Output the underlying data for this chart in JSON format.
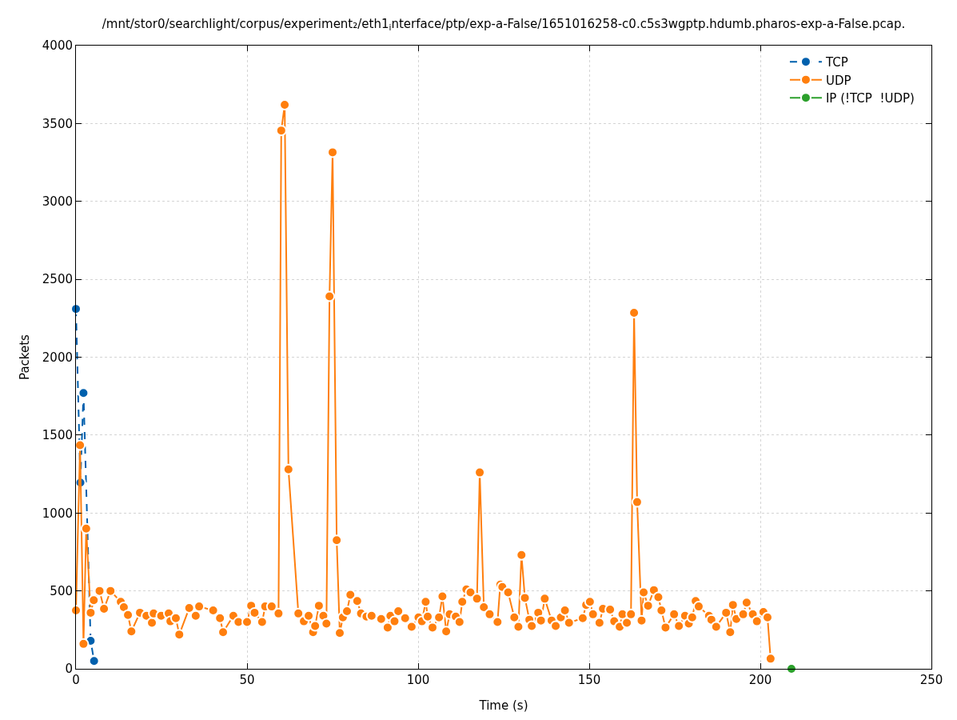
{
  "chart_data": {
    "type": "line",
    "title": "/mnt/stor0/searchlight/corpus/experiment₂/eth1$_{i}$nterface/ptp/exp-a-False/1651016258-c0.c5s3wgptp.hdumb.pharos-exp-a-False.pcap.",
    "xlabel": "Time (s)",
    "ylabel": "Packets",
    "xlim": [
      0,
      250
    ],
    "xticks": [
      0,
      50,
      100,
      150,
      200,
      250
    ],
    "ylim": [
      0,
      4000
    ],
    "yticks": [
      0,
      500,
      1000,
      1500,
      2000,
      2500,
      3000,
      3500,
      4000
    ],
    "grid": true,
    "legend": "top right",
    "marker": "circle",
    "series": [
      {
        "name": "TCP",
        "color": "#0060ad",
        "line_style": "dashed",
        "x": [
          0.0,
          1.3,
          2.2,
          4.3,
          5.3
        ],
        "values": [
          2310,
          1195,
          1770,
          180,
          50
        ]
      },
      {
        "name": "UDP",
        "color": "#ff7f0e",
        "line_style": "solid",
        "x": [
          0.0,
          1.2,
          2.2,
          3.0,
          4.3,
          5.2,
          6.9,
          8.2,
          10.1,
          13.1,
          14.0,
          15.2,
          16.2,
          18.7,
          20.6,
          22.2,
          22.7,
          24.9,
          27.1,
          27.6,
          29.2,
          30.2,
          33.1,
          35.0,
          36.0,
          40.1,
          42.1,
          43.0,
          46.0,
          47.5,
          50.0,
          51.2,
          52.2,
          54.4,
          55.3,
          57.2,
          59.2,
          60.0,
          61.0,
          62.1,
          65.0,
          66.6,
          68.0,
          69.3,
          69.9,
          71.0,
          72.3,
          73.2,
          74.1,
          75.0,
          76.2,
          77.1,
          78.0,
          79.2,
          80.2,
          82.2,
          83.3,
          84.9,
          86.4,
          89.2,
          91.1,
          91.9,
          93.1,
          94.2,
          96.2,
          98.1,
          100.1,
          101.1,
          102.2,
          102.8,
          104.2,
          106.1,
          107.1,
          108.2,
          109.2,
          111.0,
          112.1,
          112.9,
          114.1,
          115.3,
          117.2,
          118.0,
          119.2,
          120.9,
          123.2,
          124.0,
          124.6,
          126.3,
          128.1,
          129.3,
          130.2,
          131.2,
          132.5,
          133.2,
          135.1,
          135.9,
          137.0,
          139.0,
          140.2,
          141.7,
          142.9,
          144.1,
          148.1,
          149.1,
          150.2,
          151.1,
          153.0,
          154.0,
          156.1,
          157.3,
          158.9,
          159.7,
          161.0,
          162.2,
          163.1,
          164.0,
          165.3,
          165.9,
          167.2,
          168.9,
          170.2,
          171.1,
          172.3,
          174.8,
          176.2,
          178.0,
          179.1,
          180.1,
          181.1,
          182.0,
          185.0,
          185.7,
          187.1,
          190.0,
          191.2,
          192.0,
          193.0,
          195.0,
          196.0,
          197.8,
          199.0,
          200.9,
          202.1,
          203.0
        ],
        "values": [
          375,
          1435,
          160,
          900,
          360,
          440,
          500,
          385,
          500,
          430,
          395,
          345,
          240,
          360,
          340,
          295,
          355,
          340,
          355,
          305,
          325,
          220,
          390,
          340,
          400,
          375,
          325,
          235,
          340,
          300,
          300,
          405,
          360,
          300,
          400,
          400,
          355,
          3455,
          3620,
          1280,
          355,
          305,
          340,
          235,
          275,
          405,
          340,
          290,
          2390,
          3315,
          825,
          230,
          330,
          370,
          475,
          435,
          355,
          335,
          340,
          320,
          265,
          340,
          305,
          370,
          325,
          270,
          330,
          305,
          430,
          335,
          265,
          330,
          465,
          240,
          350,
          335,
          300,
          430,
          510,
          490,
          450,
          1260,
          395,
          350,
          300,
          540,
          525,
          490,
          330,
          270,
          730,
          455,
          315,
          275,
          360,
          310,
          450,
          310,
          275,
          330,
          375,
          295,
          325,
          410,
          430,
          350,
          295,
          385,
          380,
          305,
          270,
          350,
          295,
          350,
          2285,
          1070,
          310,
          490,
          405,
          505,
          460,
          375,
          265,
          350,
          275,
          340,
          290,
          330,
          435,
          400,
          340,
          315,
          270,
          360,
          235,
          410,
          320,
          350,
          425,
          350,
          305,
          365,
          330,
          65
        ]
      },
      {
        "name": "IP (!TCP  !UDP)",
        "color": "#2ca02c",
        "line_style": "solid",
        "x": [
          209.1
        ],
        "values": [
          0
        ]
      }
    ]
  }
}
